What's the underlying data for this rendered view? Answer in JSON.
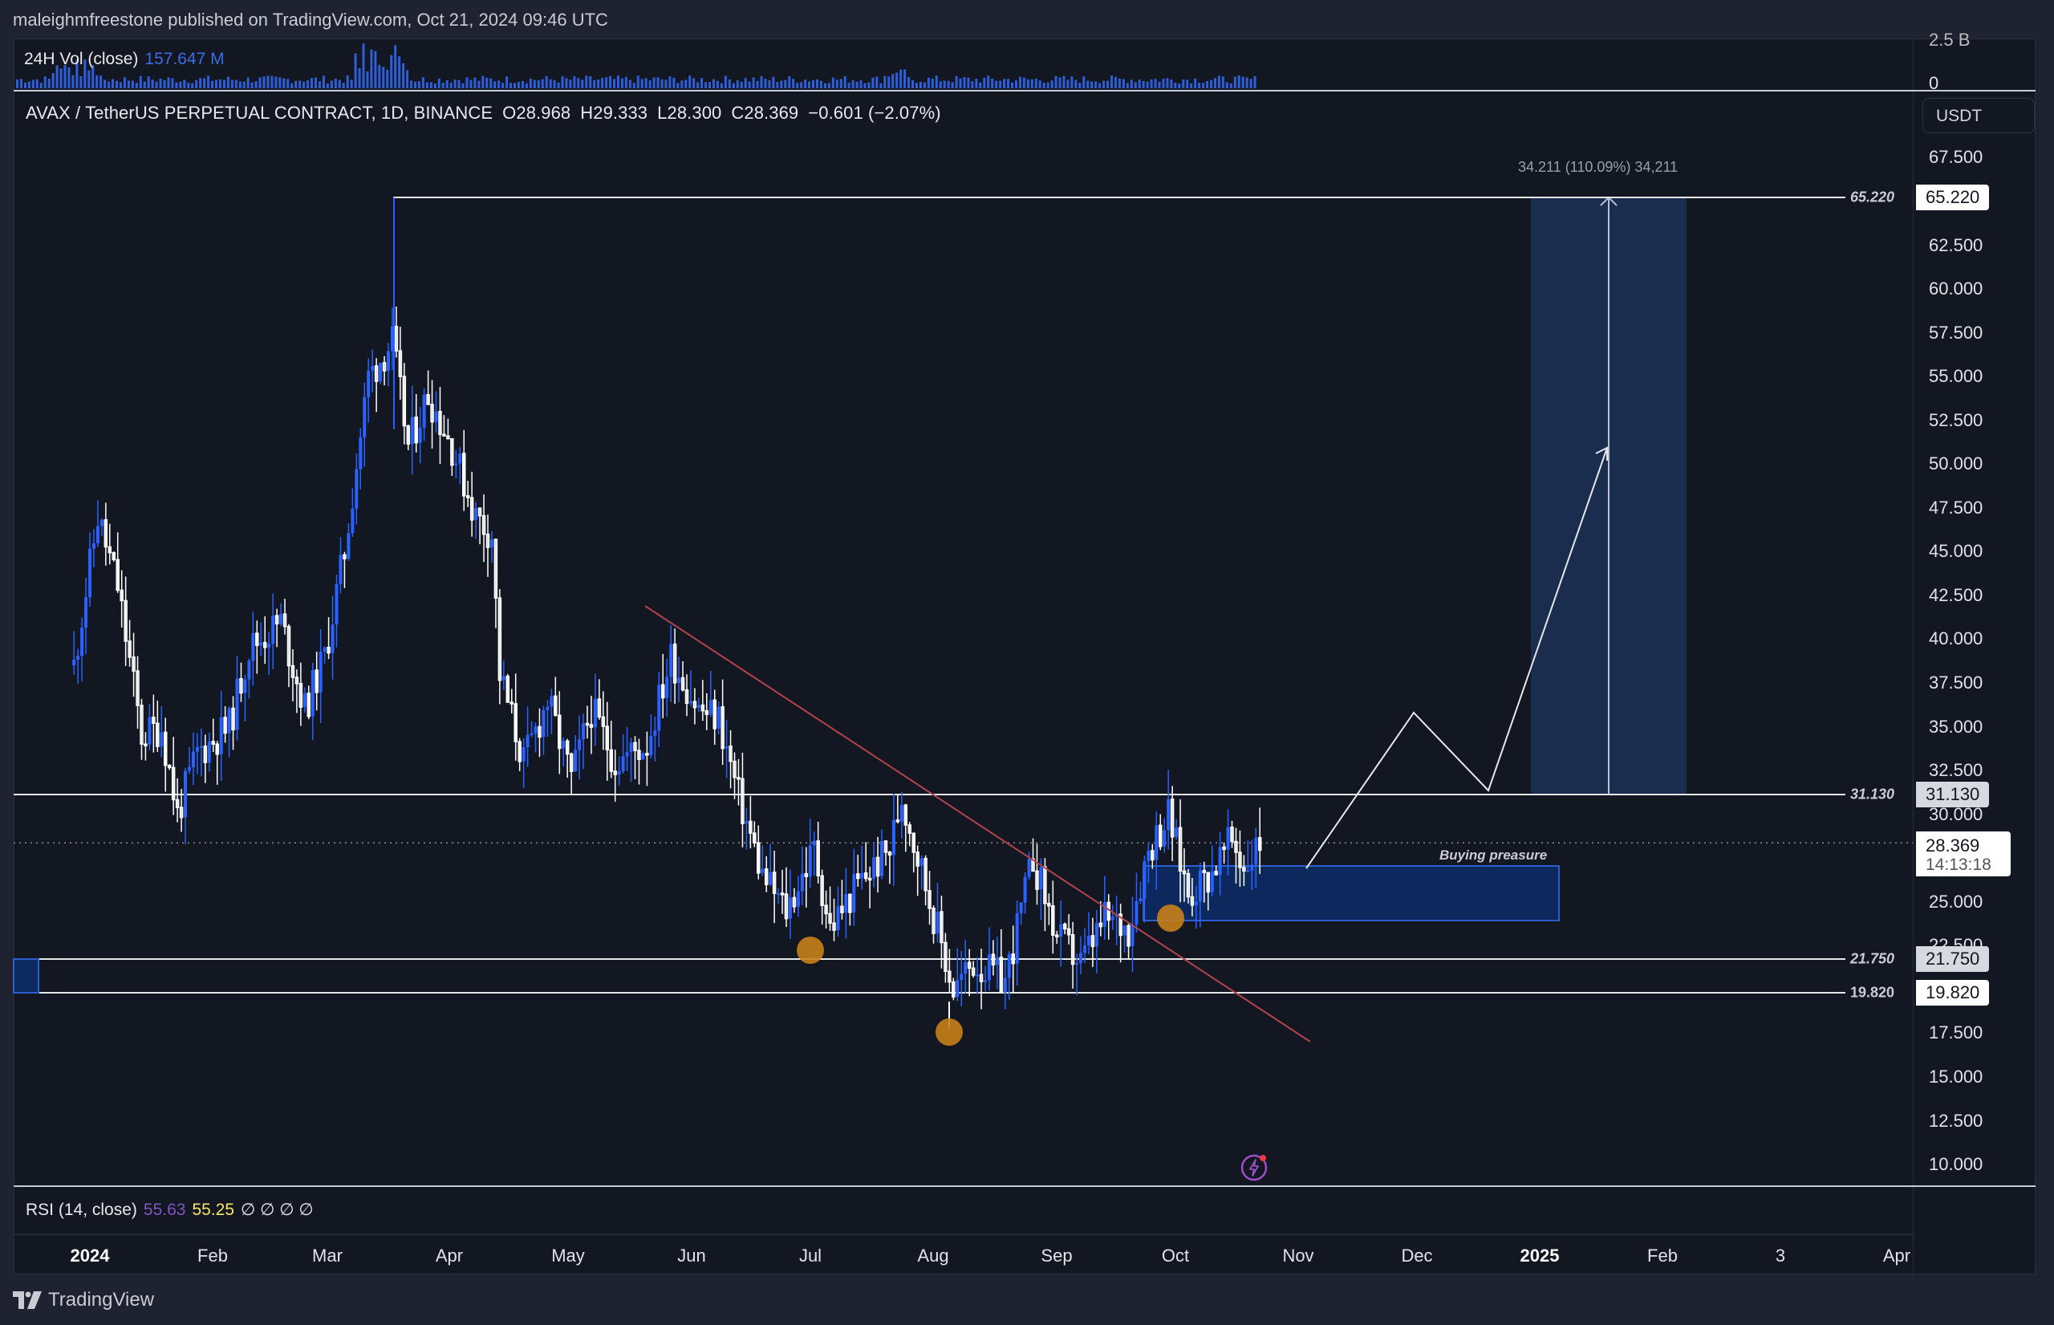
{
  "header": {
    "published": "maleighmfreestone published on TradingView.com, Oct 21, 2024 09:46 UTC"
  },
  "volume": {
    "label": "24H Vol (close)",
    "value": "157.647 M",
    "axis_labels": [
      "2.5 B",
      "0"
    ]
  },
  "symbol": {
    "name": "AVAX / TetherUS PERPETUAL CONTRACT, 1D, BINANCE",
    "open": "O28.968",
    "high": "H29.333",
    "low": "L28.300",
    "close": "C28.369",
    "change": "−0.601 (−2.07%)"
  },
  "price_axis": {
    "currency": "USDT",
    "ticks": [
      "67.500",
      "62.500",
      "60.000",
      "57.500",
      "55.000",
      "52.500",
      "50.000",
      "47.500",
      "45.000",
      "42.500",
      "40.000",
      "37.500",
      "35.000",
      "32.500",
      "30.000",
      "25.000",
      "22.500",
      "17.500",
      "15.000",
      "12.500",
      "10.000"
    ],
    "last_price": "28.369",
    "countdown": "14:13:18"
  },
  "levels": [
    {
      "value": "65.220",
      "style": "white"
    },
    {
      "value": "31.130",
      "style": "grey"
    },
    {
      "value": "21.750",
      "style": "grey"
    },
    {
      "value": "19.820",
      "style": "white"
    }
  ],
  "annotations": {
    "measure": "34.211 (110.09%) 34,211",
    "buying_zone": "Buying preasure"
  },
  "rsi": {
    "label": "RSI (14, close)",
    "value1": "55.63",
    "value2": "55.25",
    "nulls": "∅ ∅ ∅ ∅"
  },
  "time_axis": [
    {
      "label": "2024",
      "bold": true
    },
    {
      "label": "Feb"
    },
    {
      "label": "Mar"
    },
    {
      "label": "Apr"
    },
    {
      "label": "May"
    },
    {
      "label": "Jun"
    },
    {
      "label": "Jul"
    },
    {
      "label": "Aug"
    },
    {
      "label": "Sep"
    },
    {
      "label": "Oct"
    },
    {
      "label": "Nov"
    },
    {
      "label": "Dec"
    },
    {
      "label": "2025",
      "bold": true
    },
    {
      "label": "Feb"
    },
    {
      "label": "3"
    },
    {
      "label": "Apr"
    }
  ],
  "brand": "TradingView",
  "colors": {
    "background": "#131722",
    "up_candle": "#2962ff",
    "down_candle": "#ffffff",
    "trendline": "#b2434f",
    "zone": "#0d2a63",
    "target_zone": "#1a2d4f",
    "pivot_marker": "#c8811a",
    "rsi_line": "#7e57c2",
    "rsi_ma": "#f5e663"
  },
  "chart_data": {
    "type": "candlestick",
    "title": "AVAX / TetherUS PERPETUAL CONTRACT, 1D, BINANCE",
    "xlabel": "",
    "ylabel": "USDT",
    "ylim": [
      8.5,
      69
    ],
    "x_ticks": [
      "2024",
      "Feb",
      "Mar",
      "Apr",
      "May",
      "Jun",
      "Jul",
      "Aug",
      "Sep",
      "Oct",
      "Nov",
      "Dec",
      "2025",
      "Feb",
      "3",
      "Apr"
    ],
    "y_ticks": [
      10,
      12.5,
      15,
      17.5,
      22.5,
      25,
      30,
      32.5,
      35,
      37.5,
      40,
      42.5,
      45,
      47.5,
      50,
      52.5,
      55,
      57.5,
      60,
      62.5,
      67.5
    ],
    "last": {
      "open": 28.968,
      "high": 29.333,
      "low": 28.3,
      "close": 28.369,
      "change": -0.601,
      "change_pct": -2.07
    },
    "close_path_keypoints": [
      {
        "date": "2023-12-28",
        "close": 38.5
      },
      {
        "date": "2024-01-03",
        "close": 47.0
      },
      {
        "date": "2024-01-08",
        "close": 43.0
      },
      {
        "date": "2024-01-14",
        "close": 34.5
      },
      {
        "date": "2024-01-19",
        "close": 35.0
      },
      {
        "date": "2024-01-23",
        "close": 30.0
      },
      {
        "date": "2024-01-28",
        "close": 33.5
      },
      {
        "date": "2024-02-05",
        "close": 35.0
      },
      {
        "date": "2024-02-10",
        "close": 39.5
      },
      {
        "date": "2024-02-18",
        "close": 41.0
      },
      {
        "date": "2024-02-24",
        "close": 36.0
      },
      {
        "date": "2024-02-29",
        "close": 39.0
      },
      {
        "date": "2024-03-05",
        "close": 45.0
      },
      {
        "date": "2024-03-11",
        "close": 55.0
      },
      {
        "date": "2024-03-17",
        "close": 57.0
      },
      {
        "date": "2024-03-21",
        "close": 51.0
      },
      {
        "date": "2024-03-26",
        "close": 54.0
      },
      {
        "date": "2024-04-01",
        "close": 51.0
      },
      {
        "date": "2024-04-07",
        "close": 47.0
      },
      {
        "date": "2024-04-11",
        "close": 46.0
      },
      {
        "date": "2024-04-13",
        "close": 38.0
      },
      {
        "date": "2024-04-19",
        "close": 33.0
      },
      {
        "date": "2024-04-25",
        "close": 36.5
      },
      {
        "date": "2024-05-01",
        "close": 32.0
      },
      {
        "date": "2024-05-06",
        "close": 36.0
      },
      {
        "date": "2024-05-12",
        "close": 33.0
      },
      {
        "date": "2024-05-20",
        "close": 34.0
      },
      {
        "date": "2024-05-26",
        "close": 39.0
      },
      {
        "date": "2024-06-02",
        "close": 36.0
      },
      {
        "date": "2024-06-07",
        "close": 35.5
      },
      {
        "date": "2024-06-12",
        "close": 31.0
      },
      {
        "date": "2024-06-18",
        "close": 26.5
      },
      {
        "date": "2024-06-24",
        "close": 24.5
      },
      {
        "date": "2024-07-01",
        "close": 28.0
      },
      {
        "date": "2024-07-05",
        "close": 23.5
      },
      {
        "date": "2024-07-12",
        "close": 26.0
      },
      {
        "date": "2024-07-20",
        "close": 28.0
      },
      {
        "date": "2024-07-23",
        "close": 31.0
      },
      {
        "date": "2024-07-29",
        "close": 26.0
      },
      {
        "date": "2024-08-05",
        "close": 20.0
      },
      {
        "date": "2024-08-10",
        "close": 21.5
      },
      {
        "date": "2024-08-18",
        "close": 20.5
      },
      {
        "date": "2024-08-25",
        "close": 27.5
      },
      {
        "date": "2024-08-31",
        "close": 23.0
      },
      {
        "date": "2024-09-06",
        "close": 21.5
      },
      {
        "date": "2024-09-12",
        "close": 24.0
      },
      {
        "date": "2024-09-18",
        "close": 23.5
      },
      {
        "date": "2024-09-23",
        "close": 28.0
      },
      {
        "date": "2024-09-28",
        "close": 30.0
      },
      {
        "date": "2024-10-03",
        "close": 25.5
      },
      {
        "date": "2024-10-08",
        "close": 26.5
      },
      {
        "date": "2024-10-14",
        "close": 28.5
      },
      {
        "date": "2024-10-17",
        "close": 27.0
      },
      {
        "date": "2024-10-21",
        "close": 28.369
      }
    ]
  }
}
